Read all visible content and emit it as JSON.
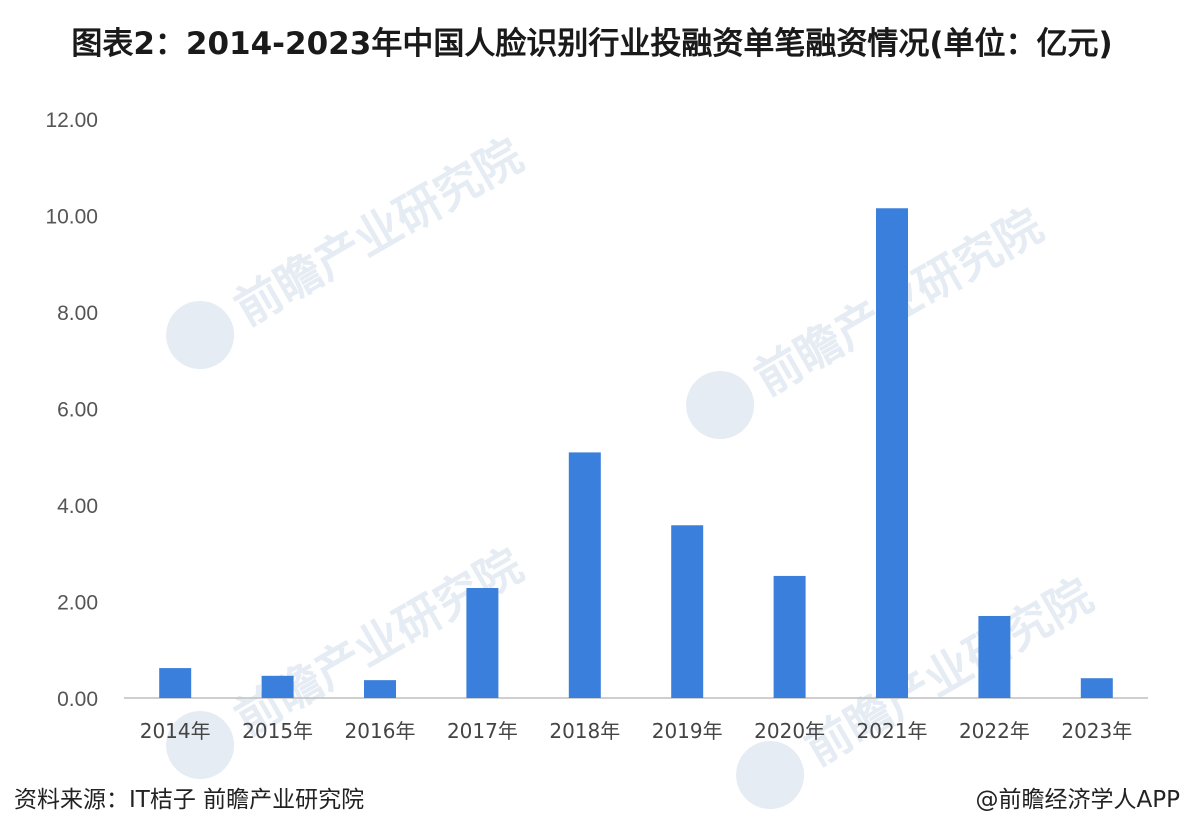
{
  "chart_data": {
    "type": "bar",
    "title": "图表2：2014-2023年中国人脸识别行业投融资单笔融资情况(单位：亿元)",
    "categories": [
      "2014年",
      "2015年",
      "2016年",
      "2017年",
      "2018年",
      "2019年",
      "2020年",
      "2021年",
      "2022年",
      "2023年"
    ],
    "values": [
      0.62,
      0.46,
      0.37,
      2.28,
      5.09,
      3.58,
      2.53,
      10.15,
      1.7,
      0.41
    ],
    "yticks": [
      "0.00",
      "2.00",
      "4.00",
      "6.00",
      "8.00",
      "10.00",
      "12.00"
    ],
    "ylim": [
      0,
      12
    ],
    "xlabel": "",
    "ylabel": "",
    "grid": false,
    "bar_color": "#3a7fdb",
    "axis_color": "#bfbfbf"
  },
  "footer": {
    "source": "资料来源：IT桔子 前瞻产业研究院",
    "credit": "@前瞻经济学人APP"
  },
  "watermark": {
    "text": "前瞻产业研究院",
    "color": "#e6ecf4"
  }
}
